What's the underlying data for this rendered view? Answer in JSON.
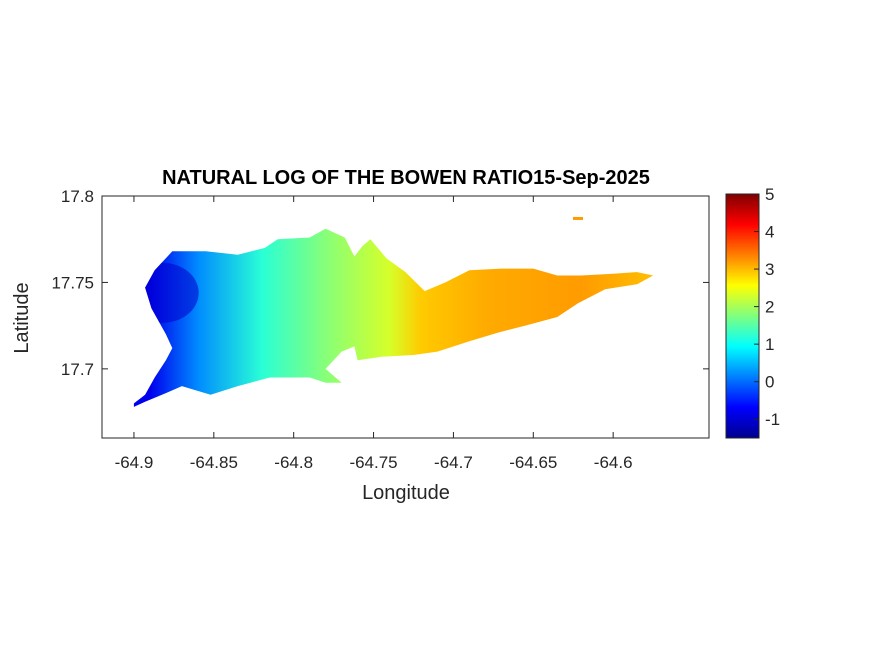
{
  "chart_data": {
    "type": "heatmap",
    "title": "NATURAL LOG OF THE BOWEN RATIO15-Sep-2025",
    "xlabel": "Longitude",
    "ylabel": "Latitude",
    "xlim": [
      -64.92,
      -64.54
    ],
    "ylim": [
      17.66,
      17.8
    ],
    "xticks": [
      -64.9,
      -64.85,
      -64.8,
      -64.75,
      -64.7,
      -64.65,
      -64.6
    ],
    "xtick_labels": [
      "-64.9",
      "-64.85",
      "-64.8",
      "-64.75",
      "-64.7",
      "-64.65",
      "-64.6"
    ],
    "yticks": [
      17.7,
      17.75,
      17.8
    ],
    "ytick_labels": [
      "17.7",
      "17.75",
      "17.8"
    ],
    "colormap": "jet",
    "clim": [
      -1.5,
      5
    ],
    "colorbar_ticks": [
      -1,
      0,
      1,
      2,
      3,
      4,
      5
    ],
    "colorbar_tick_labels": [
      "-1",
      "0",
      "1",
      "2",
      "3",
      "4",
      "5"
    ],
    "grid": false,
    "field_trend": [
      {
        "longitude": -64.89,
        "value": -0.8
      },
      {
        "longitude": -64.86,
        "value": 0.2
      },
      {
        "longitude": -64.82,
        "value": 1.2
      },
      {
        "longitude": -64.78,
        "value": 1.8
      },
      {
        "longitude": -64.74,
        "value": 2.3
      },
      {
        "longitude": -64.72,
        "value": 2.9
      },
      {
        "longitude": -64.68,
        "value": 3.1
      },
      {
        "longitude": -64.62,
        "value": 3.2
      },
      {
        "longitude": -64.58,
        "value": 3.0
      }
    ],
    "island_outline": [
      [
        -64.9,
        17.68
      ],
      [
        -64.893,
        17.685
      ],
      [
        -64.887,
        17.695
      ],
      [
        -64.88,
        17.705
      ],
      [
        -64.876,
        17.712
      ],
      [
        -64.88,
        17.72
      ],
      [
        -64.889,
        17.735
      ],
      [
        -64.893,
        17.747
      ],
      [
        -64.887,
        17.757
      ],
      [
        -64.876,
        17.768
      ],
      [
        -64.855,
        17.768
      ],
      [
        -64.835,
        17.766
      ],
      [
        -64.818,
        17.77
      ],
      [
        -64.81,
        17.775
      ],
      [
        -64.79,
        17.776
      ],
      [
        -64.78,
        17.781
      ],
      [
        -64.768,
        17.776
      ],
      [
        -64.762,
        17.765
      ],
      [
        -64.757,
        17.771
      ],
      [
        -64.752,
        17.775
      ],
      [
        -64.742,
        17.764
      ],
      [
        -64.73,
        17.756
      ],
      [
        -64.718,
        17.745
      ],
      [
        -64.705,
        17.75
      ],
      [
        -64.69,
        17.757
      ],
      [
        -64.67,
        17.758
      ],
      [
        -64.65,
        17.758
      ],
      [
        -64.635,
        17.754
      ],
      [
        -64.62,
        17.754
      ],
      [
        -64.6,
        17.755
      ],
      [
        -64.585,
        17.756
      ],
      [
        -64.575,
        17.754
      ],
      [
        -64.585,
        17.749
      ],
      [
        -64.605,
        17.746
      ],
      [
        -64.622,
        17.738
      ],
      [
        -64.635,
        17.73
      ],
      [
        -64.655,
        17.725
      ],
      [
        -64.672,
        17.721
      ],
      [
        -64.69,
        17.716
      ],
      [
        -64.71,
        17.71
      ],
      [
        -64.725,
        17.708
      ],
      [
        -64.745,
        17.707
      ],
      [
        -64.76,
        17.705
      ],
      [
        -64.762,
        17.713
      ],
      [
        -64.77,
        17.71
      ],
      [
        -64.78,
        17.7
      ],
      [
        -64.77,
        17.692
      ],
      [
        -64.78,
        17.692
      ],
      [
        -64.79,
        17.695
      ],
      [
        -64.815,
        17.695
      ],
      [
        -64.835,
        17.69
      ],
      [
        -64.852,
        17.685
      ],
      [
        -64.87,
        17.69
      ],
      [
        -64.88,
        17.686
      ],
      [
        -64.893,
        17.681
      ],
      [
        -64.9,
        17.678
      ]
    ],
    "small_island": {
      "longitude": -64.622,
      "latitude": 17.787
    }
  }
}
